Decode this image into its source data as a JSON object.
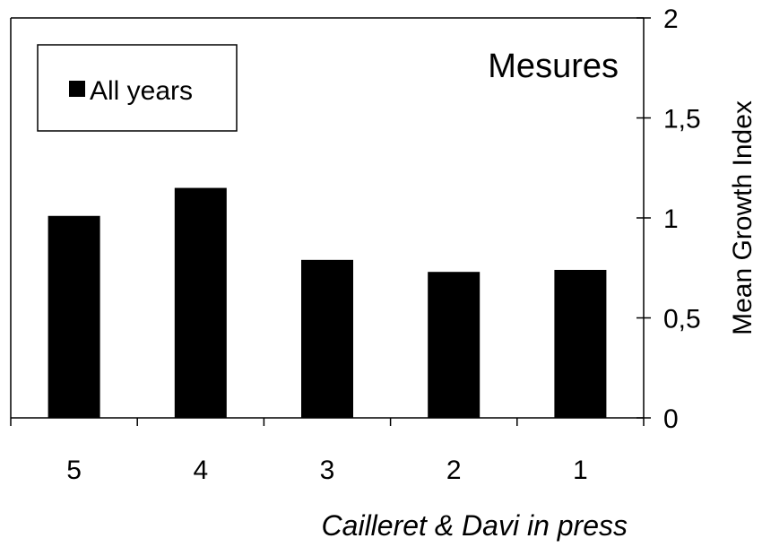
{
  "chart_data": {
    "type": "bar",
    "title": "Mesures",
    "xlabel": "",
    "ylabel": "Mean Growth Index",
    "categories": [
      "5",
      "4",
      "3",
      "2",
      "1"
    ],
    "series": [
      {
        "name": "All years",
        "values": [
          1.01,
          1.15,
          0.79,
          0.73,
          0.74
        ],
        "color": "#000000"
      }
    ],
    "ylim": [
      0,
      2
    ],
    "yticks": [
      0,
      0.5,
      1,
      1.5,
      2
    ],
    "ytick_labels": [
      "0",
      "0,5",
      "1",
      "1,5",
      "2"
    ],
    "y_axis_side": "right",
    "grid": false,
    "legend_position": "top-left",
    "caption": "Cailleret & Davi in press"
  }
}
